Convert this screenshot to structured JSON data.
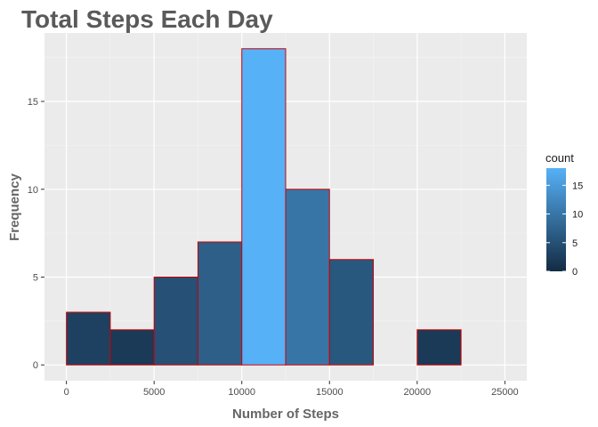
{
  "chart_data": {
    "type": "bar",
    "title": "Total Steps Each Day",
    "xlabel": "Number of Steps",
    "ylabel": "Frequency",
    "bins": [
      {
        "from": 0,
        "to": 2500,
        "count": 3
      },
      {
        "from": 2500,
        "to": 5000,
        "count": 2
      },
      {
        "from": 5000,
        "to": 7500,
        "count": 5
      },
      {
        "from": 7500,
        "to": 10000,
        "count": 7
      },
      {
        "from": 10000,
        "to": 12500,
        "count": 18
      },
      {
        "from": 12500,
        "to": 15000,
        "count": 10
      },
      {
        "from": 15000,
        "to": 17500,
        "count": 6
      },
      {
        "from": 17500,
        "to": 20000,
        "count": 0
      },
      {
        "from": 20000,
        "to": 22500,
        "count": 2
      },
      {
        "from": 22500,
        "to": 25000,
        "count": 0
      }
    ],
    "xlim": [
      -1250,
      26250
    ],
    "ylim": [
      -0.9,
      18.9
    ],
    "x_ticks": [
      "0",
      "5000",
      "10000",
      "15000",
      "20000",
      "25000"
    ],
    "y_ticks": [
      "0",
      "5",
      "10",
      "15"
    ],
    "grid": true,
    "bar_outline_color": "#cc0000",
    "panel_background": "#ebebeb",
    "fill_scale": {
      "low": "#132b43",
      "high": "#56b1f7"
    },
    "legend": {
      "title": "count",
      "labels": [
        "0",
        "5",
        "10",
        "15"
      ],
      "position": "right"
    }
  }
}
